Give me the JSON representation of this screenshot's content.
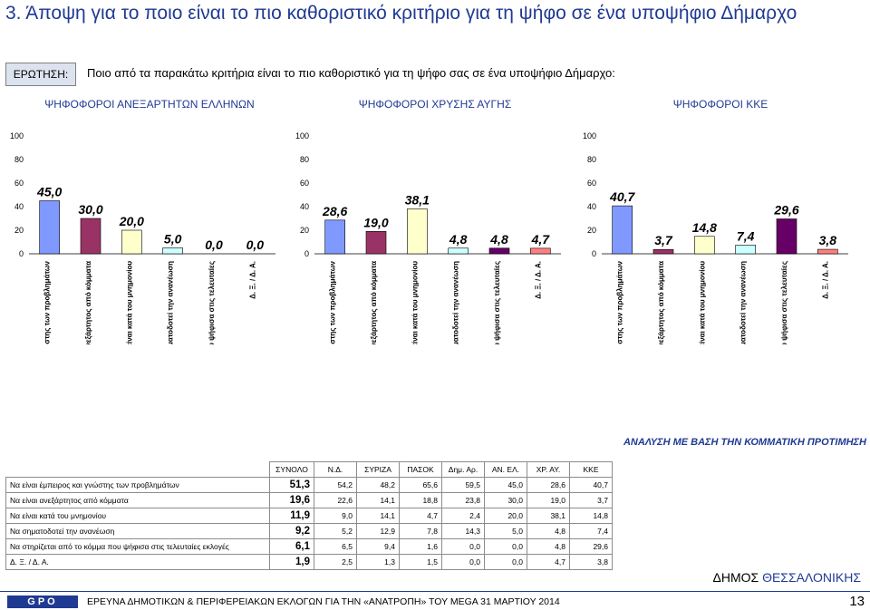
{
  "header": {
    "title": "3.  Άποψη για το ποιο είναι το πιο καθοριστικό κριτήριο για τη ψήφο σε ένα υποψήφιο Δήμαρχο",
    "question_label": "ΕΡΩΤΗΣΗ:",
    "question_text": "Ποιο από τα παρακάτω κριτήρια είναι το πιο καθοριστικό για τη ψήφο σας σε ένα υποψήφιο Δήμαρχο:"
  },
  "chart_data": [
    {
      "type": "bar",
      "title": "ΨΗΦΟΦΟΡΟΙ ΑΝΕΞΑΡΤΗΤΩΝ ΕΛΛΗΝΩΝ",
      "categories": [
        "Να είναι έμπειρος και γνώστης των προβλημάτων",
        "Να είναι ανεξάρτητος από κόμματα",
        "Να είναι κατά του μνημονίου",
        "Να σηματοδοτεί την ανανέωση",
        "Να στηρίζεται από το κόμμα που ψήφισα στις τελευταίες",
        "Δ. Ξ. / Δ. Α."
      ],
      "values": [
        45.0,
        30.0,
        20.0,
        5.0,
        0.0,
        0.0
      ],
      "value_labels": [
        "45,0",
        "30,0",
        "20,0",
        "5,0",
        "0,0",
        "0,0"
      ],
      "ylim": [
        0,
        100
      ],
      "yticks": [
        "0",
        "20",
        "40",
        "60",
        "80",
        "100"
      ]
    },
    {
      "type": "bar",
      "title": "ΨΗΦΟΦΟΡΟΙ ΧΡΥΣΗΣ ΑΥΓΗΣ",
      "categories": [
        "Να είναι έμπειρος και γνώστης των προβλημάτων",
        "Να είναι ανεξάρτητος από κόμματα",
        "Να είναι κατά του μνημονίου",
        "Να σηματοδοτεί την ανανέωση",
        "Να στηρίζεται από το κόμμα που ψήφισα στις τελευταίες",
        "Δ. Ξ. / Δ. Α."
      ],
      "values": [
        28.6,
        19.0,
        38.1,
        4.8,
        4.8,
        4.7
      ],
      "value_labels": [
        "28,6",
        "19,0",
        "38,1",
        "4,8",
        "4,8",
        "4,7"
      ],
      "ylim": [
        0,
        100
      ],
      "yticks": [
        "0",
        "20",
        "40",
        "60",
        "80",
        "100"
      ]
    },
    {
      "type": "bar",
      "title": "ΨΗΦΟΦΟΡΟΙ ΚΚΕ",
      "categories": [
        "Να είναι έμπειρος και γνώστης των προβλημάτων",
        "Να είναι ανεξάρτητος από κόμματα",
        "Να είναι κατά του μνημονίου",
        "Να σηματοδοτεί την ανανέωση",
        "Να στηρίζεται από το κόμμα που ψήφισα στις τελευταίες",
        "Δ. Ξ. / Δ. Α."
      ],
      "values": [
        40.7,
        3.7,
        14.8,
        7.4,
        29.6,
        3.8
      ],
      "value_labels": [
        "40,7",
        "3,7",
        "14,8",
        "7,4",
        "29,6",
        "3,8"
      ],
      "ylim": [
        0,
        100
      ],
      "yticks": [
        "0",
        "20",
        "40",
        "60",
        "80",
        "100"
      ]
    }
  ],
  "bar_colors": [
    "#7f99ff",
    "#993366",
    "#ffffcc",
    "#ccffff",
    "#660066",
    "#ff8080"
  ],
  "analysis_title": "ΑΝΑΛΥΣΗ ΜΕ ΒΑΣΗ ΤΗΝ ΚΟΜΜΑΤΙΚΗ ΠΡΟΤΙΜΗΣΗ",
  "table": {
    "headers": [
      "ΣΥΝΟΛΟ",
      "Ν.Δ.",
      "ΣΥΡΙΖΑ",
      "ΠΑΣΟΚ",
      "Δημ. Αρ.",
      "ΑΝ. ΕΛ.",
      "ΧΡ. ΑΥ.",
      "ΚΚΕ"
    ],
    "rows": [
      {
        "label": "Να είναι έμπειρος και γνώστης των προβλημάτων",
        "total": "51,3",
        "values": [
          "54,2",
          "48,2",
          "65,6",
          "59,5",
          "45,0",
          "28,6",
          "40,7"
        ]
      },
      {
        "label": "Να είναι ανεξάρτητος από κόμματα",
        "total": "19,6",
        "values": [
          "22,6",
          "14,1",
          "18,8",
          "23,8",
          "30,0",
          "19,0",
          "3,7"
        ]
      },
      {
        "label": "Να είναι κατά του μνημονίου",
        "total": "11,9",
        "values": [
          "9,0",
          "14,1",
          "4,7",
          "2,4",
          "20,0",
          "38,1",
          "14,8"
        ]
      },
      {
        "label": "Να σηματοδοτεί την ανανέωση",
        "total": "9,2",
        "values": [
          "5,2",
          "12,9",
          "7,8",
          "14,3",
          "5,0",
          "4,8",
          "7,4"
        ]
      },
      {
        "label": "Να στηρίζεται από το κόμμα που ψήφισα στις τελευταίες εκλογές",
        "total": "6,1",
        "values": [
          "6,5",
          "9,4",
          "1,6",
          "0,0",
          "0,0",
          "4,8",
          "29,6"
        ]
      },
      {
        "label": "Δ. Ξ. / Δ. Α.",
        "total": "1,9",
        "values": [
          "2,5",
          "1,3",
          "1,5",
          "0,0",
          "0,0",
          "4,7",
          "3,8"
        ]
      }
    ]
  },
  "municipality": {
    "prefix": "ΔΗΜΟΣ ",
    "name": "ΘΕΣΣΑΛΟΝΙΚΗΣ"
  },
  "footer": {
    "logo": "GPO",
    "text": "ΕΡΕΥΝΑ ΔΗΜΟΤΙΚΩΝ & ΠΕΡΙΦΕΡΕΙΑΚΩΝ ΕΚΛΟΓΩΝ ΓΙΑ ΤΗΝ «ΑΝΑΤΡΟΠΗ» ΤΟΥ MEGA 31 ΜΑΡΤΙΟΥ 2014",
    "page": "13"
  }
}
